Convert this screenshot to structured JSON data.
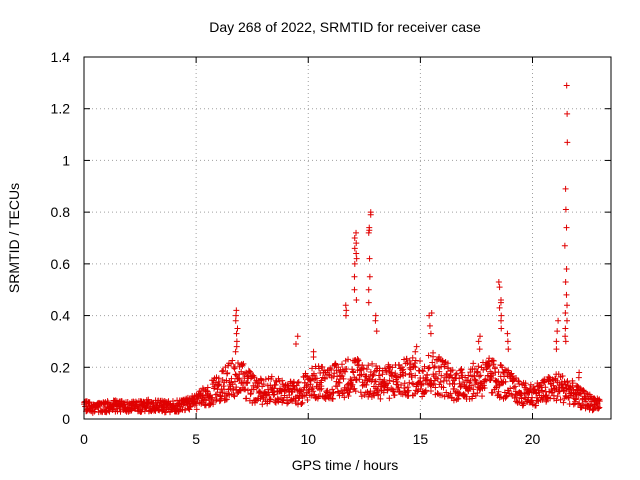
{
  "chart_data": {
    "type": "scatter",
    "title": "Day 268 of 2022, SRMTID for receiver case",
    "xlabel": "GPS time / hours",
    "ylabel": "SRMTID / TECUs",
    "xlim": [
      0,
      23.5
    ],
    "ylim": [
      0,
      1.4
    ],
    "x_ticks": [
      "0",
      "5",
      "10",
      "15",
      "20"
    ],
    "y_ticks": [
      "0",
      "0.2",
      "0.4",
      "0.6",
      "0.8",
      "1",
      "1.2",
      "1.4"
    ],
    "grid": true,
    "marker": "+",
    "series": [
      {
        "name": "SRMTID",
        "color": "#e00000",
        "baseline": [
          [
            0.0,
            0.05
          ],
          [
            0.5,
            0.045
          ],
          [
            1.0,
            0.05
          ],
          [
            1.5,
            0.055
          ],
          [
            2.0,
            0.055
          ],
          [
            2.5,
            0.05
          ],
          [
            3.0,
            0.055
          ],
          [
            3.5,
            0.05
          ],
          [
            4.0,
            0.05
          ],
          [
            4.5,
            0.055
          ],
          [
            5.0,
            0.07
          ],
          [
            5.5,
            0.1
          ],
          [
            6.0,
            0.12
          ],
          [
            6.5,
            0.16
          ],
          [
            7.0,
            0.17
          ],
          [
            7.5,
            0.12
          ],
          [
            8.0,
            0.11
          ],
          [
            8.5,
            0.12
          ],
          [
            9.0,
            0.11
          ],
          [
            9.5,
            0.1
          ],
          [
            10.0,
            0.14
          ],
          [
            10.5,
            0.15
          ],
          [
            11.0,
            0.15
          ],
          [
            11.5,
            0.16
          ],
          [
            12.0,
            0.18
          ],
          [
            12.5,
            0.16
          ],
          [
            13.0,
            0.15
          ],
          [
            13.5,
            0.15
          ],
          [
            14.0,
            0.16
          ],
          [
            14.5,
            0.17
          ],
          [
            15.0,
            0.17
          ],
          [
            15.5,
            0.19
          ],
          [
            16.0,
            0.17
          ],
          [
            16.5,
            0.14
          ],
          [
            17.0,
            0.14
          ],
          [
            17.5,
            0.16
          ],
          [
            18.0,
            0.17
          ],
          [
            18.5,
            0.16
          ],
          [
            19.0,
            0.13
          ],
          [
            19.5,
            0.1
          ],
          [
            20.0,
            0.1
          ],
          [
            20.5,
            0.11
          ],
          [
            21.0,
            0.13
          ],
          [
            21.5,
            0.12
          ],
          [
            22.0,
            0.09
          ],
          [
            22.5,
            0.07
          ],
          [
            23.0,
            0.06
          ]
        ],
        "spikes": [
          {
            "x": 6.8,
            "values": [
              0.42,
              0.4,
              0.38,
              0.35,
              0.33,
              0.3,
              0.28,
              0.26
            ]
          },
          {
            "x": 9.5,
            "values": [
              0.32,
              0.29
            ]
          },
          {
            "x": 10.2,
            "values": [
              0.26,
              0.24
            ]
          },
          {
            "x": 11.7,
            "values": [
              0.44,
              0.42,
              0.4
            ]
          },
          {
            "x": 12.1,
            "values": [
              0.72,
              0.7,
              0.68,
              0.66,
              0.64,
              0.62,
              0.6,
              0.55,
              0.5,
              0.46
            ]
          },
          {
            "x": 12.75,
            "values": [
              0.8,
              0.79,
              0.74,
              0.73,
              0.72,
              0.62,
              0.55,
              0.5,
              0.45
            ]
          },
          {
            "x": 13.0,
            "values": [
              0.4,
              0.38,
              0.34
            ]
          },
          {
            "x": 14.8,
            "values": [
              0.28,
              0.26
            ]
          },
          {
            "x": 15.45,
            "values": [
              0.41,
              0.4,
              0.36,
              0.33
            ]
          },
          {
            "x": 17.6,
            "values": [
              0.32,
              0.3,
              0.27
            ]
          },
          {
            "x": 18.55,
            "values": [
              0.53,
              0.51,
              0.46,
              0.45,
              0.43,
              0.4,
              0.38,
              0.35
            ]
          },
          {
            "x": 18.9,
            "values": [
              0.33,
              0.3,
              0.27
            ]
          },
          {
            "x": 21.1,
            "values": [
              0.38,
              0.34,
              0.3,
              0.27
            ]
          },
          {
            "x": 21.5,
            "values": [
              1.29,
              1.18,
              1.07,
              0.89,
              0.81,
              0.74,
              0.67,
              0.58,
              0.53,
              0.48,
              0.44,
              0.41,
              0.38,
              0.35,
              0.32,
              0.3
            ]
          },
          {
            "x": 22.1,
            "values": [
              0.18,
              0.16
            ]
          }
        ]
      }
    ]
  }
}
